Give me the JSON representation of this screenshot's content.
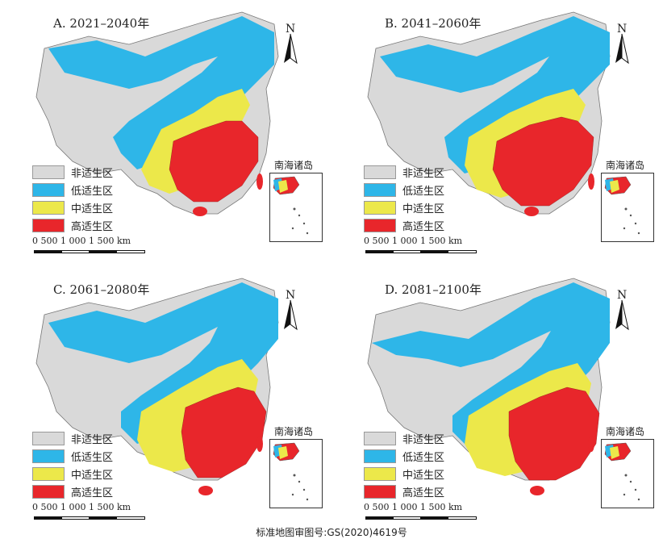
{
  "panels": [
    {
      "title": "A. 2021–2040年"
    },
    {
      "title": "B. 2041–2060年"
    },
    {
      "title": "C. 2061–2080年"
    },
    {
      "title": "D. 2081–2100年"
    }
  ],
  "legend": [
    {
      "label": "非适生区",
      "color": "#d9d9d9"
    },
    {
      "label": "低适生区",
      "color": "#2eb6e8"
    },
    {
      "label": "中适生区",
      "color": "#ece84a"
    },
    {
      "label": "高适生区",
      "color": "#e8262b"
    }
  ],
  "inset_label": "南海诸岛",
  "north_label": "N",
  "scale_label": "0    500 1 000 1 500 km",
  "footer": "标准地图审图号:GS(2020)4619号"
}
